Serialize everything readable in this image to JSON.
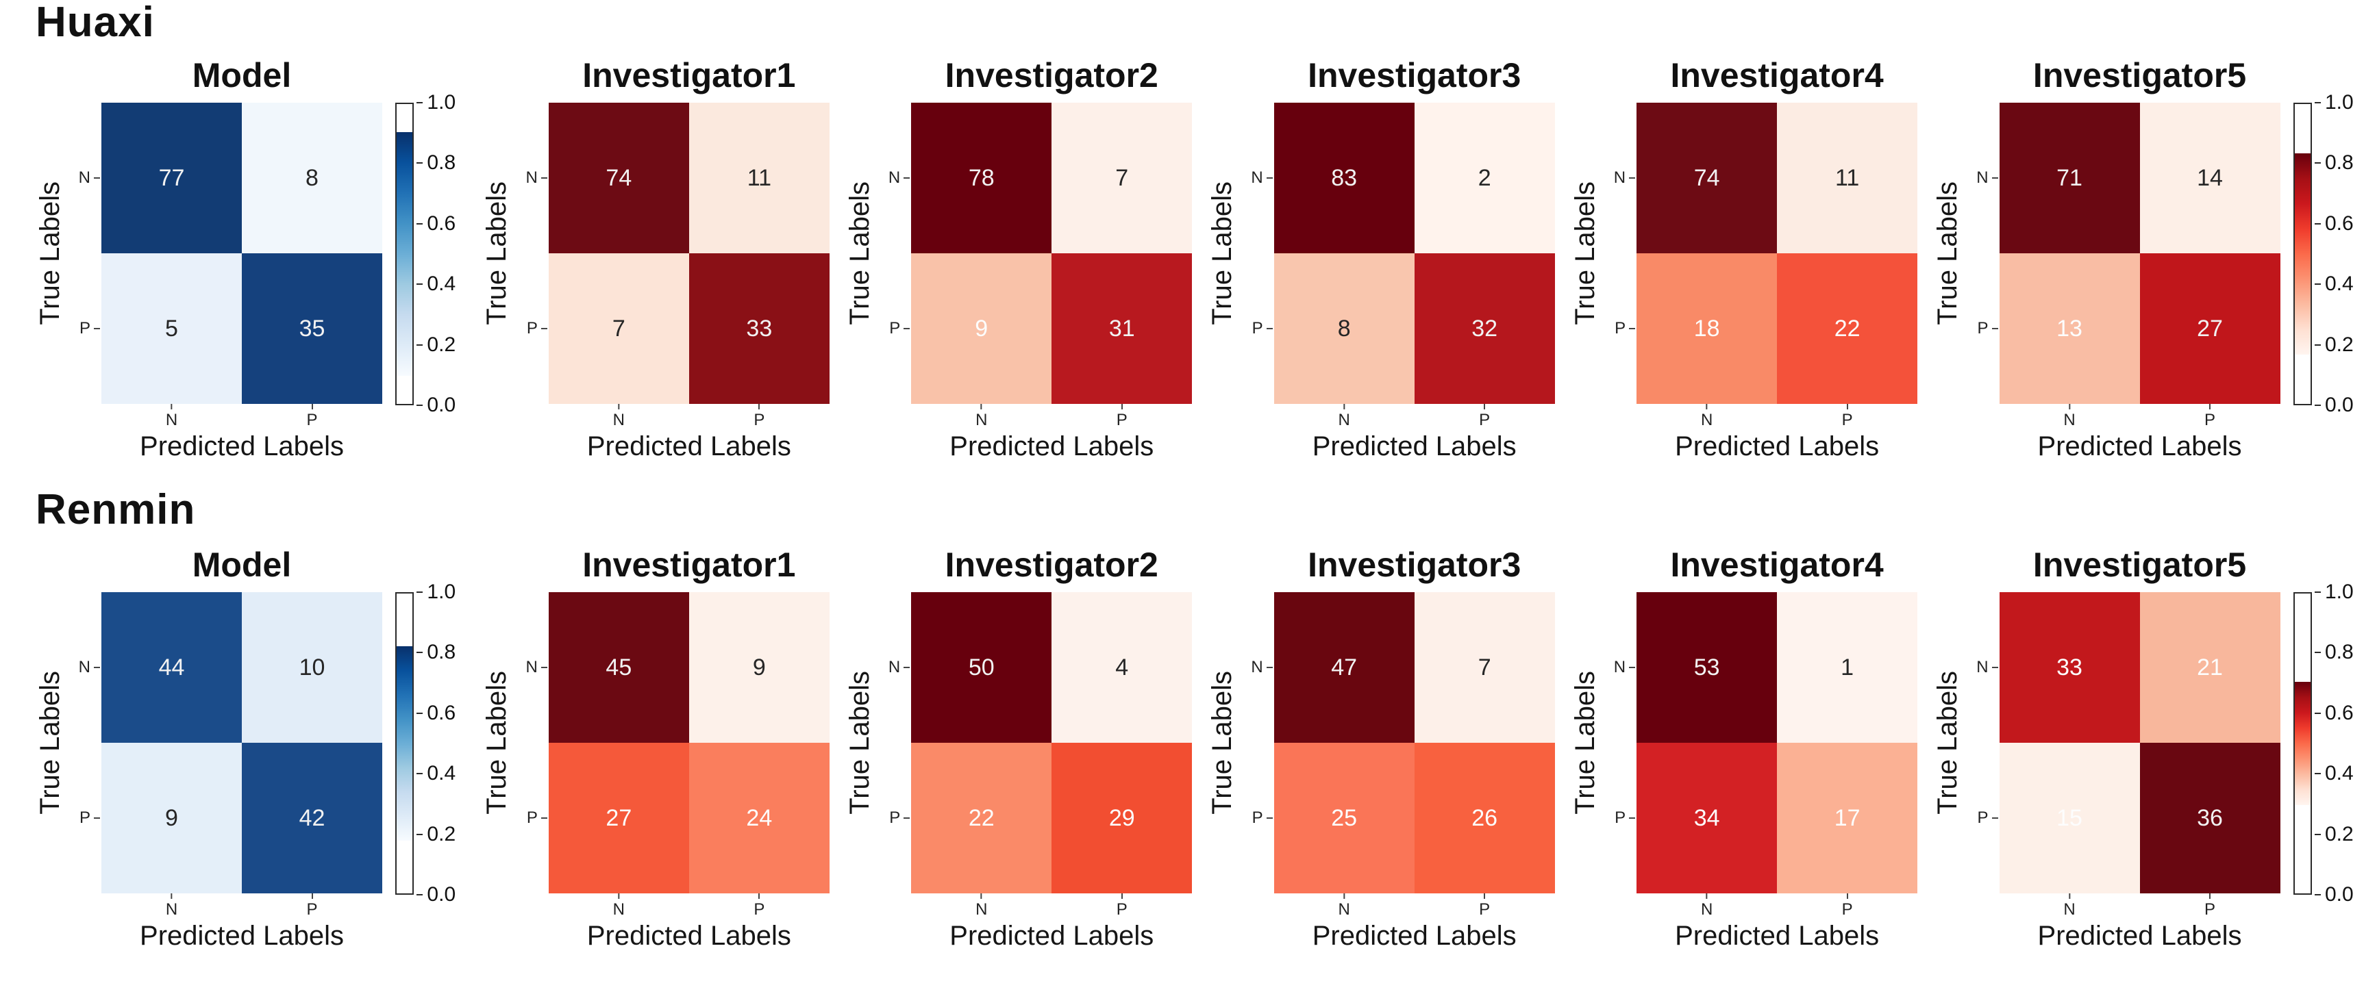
{
  "axes": {
    "xlabel": "Predicted Labels",
    "ylabel": "True Labels",
    "x_ticks": [
      "N",
      "P"
    ],
    "y_ticks": [
      "N",
      "P"
    ]
  },
  "rows": [
    {
      "heading": "Huaxi",
      "panels": [
        {
          "title": "Model",
          "cells": [
            {
              "v": "77",
              "bg": "#123c74",
              "fg": "#f2f2f2"
            },
            {
              "v": "8",
              "bg": "#f1f7fc",
              "fg": "#262626"
            },
            {
              "v": "5",
              "bg": "#e9f1fa",
              "fg": "#262626"
            },
            {
              "v": "35",
              "bg": "#15417d",
              "fg": "#f2f2f2"
            }
          ]
        },
        {
          "title": "Investigator1",
          "cells": [
            {
              "v": "74",
              "bg": "#6d0b14",
              "fg": "#f2f2f2"
            },
            {
              "v": "11",
              "bg": "#fbe9de",
              "fg": "#262626"
            },
            {
              "v": "7",
              "bg": "#fce4d7",
              "fg": "#262626"
            },
            {
              "v": "33",
              "bg": "#8a1016",
              "fg": "#f2f2f2"
            }
          ]
        },
        {
          "title": "Investigator2",
          "cells": [
            {
              "v": "78",
              "bg": "#67000d",
              "fg": "#f2f2f2"
            },
            {
              "v": "7",
              "bg": "#fdf0e9",
              "fg": "#262626"
            },
            {
              "v": "9",
              "bg": "#f9c2a9",
              "fg": "#fdfdfd"
            },
            {
              "v": "31",
              "bg": "#b8191f",
              "fg": "#f2f2f2"
            }
          ]
        },
        {
          "title": "Investigator3",
          "cells": [
            {
              "v": "83",
              "bg": "#67000d",
              "fg": "#f2f2f2"
            },
            {
              "v": "2",
              "bg": "#fff3ed",
              "fg": "#262626"
            },
            {
              "v": "8",
              "bg": "#f9c6ae",
              "fg": "#262626"
            },
            {
              "v": "32",
              "bg": "#b5171d",
              "fg": "#f2f2f2"
            }
          ]
        },
        {
          "title": "Investigator4",
          "cells": [
            {
              "v": "74",
              "bg": "#6d0b14",
              "fg": "#f2f2f2"
            },
            {
              "v": "11",
              "bg": "#fcece3",
              "fg": "#262626"
            },
            {
              "v": "18",
              "bg": "#f98a67",
              "fg": "#fdfdfd"
            },
            {
              "v": "22",
              "bg": "#f4523a",
              "fg": "#fdfdfd"
            }
          ]
        },
        {
          "title": "Investigator5",
          "cells": [
            {
              "v": "71",
              "bg": "#6a0812",
              "fg": "#f2f2f2"
            },
            {
              "v": "14",
              "bg": "#fdefe7",
              "fg": "#262626"
            },
            {
              "v": "13",
              "bg": "#f9bda4",
              "fg": "#fdfdfd"
            },
            {
              "v": "27",
              "bg": "#c0161b",
              "fg": "#f2f2f2"
            }
          ]
        }
      ],
      "cb_blue": {
        "ticks": [
          "1.0",
          "0.8",
          "0.6",
          "0.4",
          "0.2",
          "0.0"
        ],
        "gradient": "linear-gradient(to bottom,#08306b 0%,#08519c 12.5%,#2171b5 25%,#4292c6 37.5%,#6baed6 50%,#9ecae1 62.5%,#c6dbef 75%,#deebf7 87.5%,#f7fbff 100%)",
        "top": "9.4%",
        "bottom": "9.4%"
      },
      "cb_red": {
        "ticks": [
          "1.0",
          "0.8",
          "0.6",
          "0.4",
          "0.2",
          "0.0"
        ],
        "gradient": "linear-gradient(to bottom,#67000d 0%,#a50f15 12.5%,#cb181d 25%,#ef3b2c 37.5%,#fb6a4a 50%,#fc9272 62.5%,#fcbba1 75%,#fee0d2 87.5%,#fff5f0 100%)",
        "top": "16.5%",
        "bottom": "16.5%"
      }
    },
    {
      "heading": "Renmin",
      "panels": [
        {
          "title": "Model",
          "cells": [
            {
              "v": "44",
              "bg": "#1b4c8a",
              "fg": "#f2f2f2"
            },
            {
              "v": "10",
              "bg": "#e2edf8",
              "fg": "#262626"
            },
            {
              "v": "9",
              "bg": "#e4eff9",
              "fg": "#262626"
            },
            {
              "v": "42",
              "bg": "#1a4a88",
              "fg": "#f2f2f2"
            }
          ]
        },
        {
          "title": "Investigator1",
          "cells": [
            {
              "v": "45",
              "bg": "#6b0912",
              "fg": "#f2f2f2"
            },
            {
              "v": "9",
              "bg": "#fdf1ea",
              "fg": "#262626"
            },
            {
              "v": "27",
              "bg": "#f5593a",
              "fg": "#fdfdfd"
            },
            {
              "v": "24",
              "bg": "#fa7e5d",
              "fg": "#fdfdfd"
            }
          ]
        },
        {
          "title": "Investigator2",
          "cells": [
            {
              "v": "50",
              "bg": "#67000d",
              "fg": "#f2f2f2"
            },
            {
              "v": "4",
              "bg": "#fdf2ec",
              "fg": "#262626"
            },
            {
              "v": "22",
              "bg": "#fa8a68",
              "fg": "#fdfdfd"
            },
            {
              "v": "29",
              "bg": "#f24e31",
              "fg": "#fdfdfd"
            }
          ]
        },
        {
          "title": "Investigator3",
          "cells": [
            {
              "v": "47",
              "bg": "#69060f",
              "fg": "#f2f2f2"
            },
            {
              "v": "7",
              "bg": "#fdf0e9",
              "fg": "#262626"
            },
            {
              "v": "25",
              "bg": "#fa7557",
              "fg": "#fdfdfd"
            },
            {
              "v": "26",
              "bg": "#f8613f",
              "fg": "#fdfdfd"
            }
          ]
        },
        {
          "title": "Investigator4",
          "cells": [
            {
              "v": "53",
              "bg": "#67000d",
              "fg": "#f2f2f2"
            },
            {
              "v": "1",
              "bg": "#fef3ee",
              "fg": "#262626"
            },
            {
              "v": "34",
              "bg": "#d32124",
              "fg": "#fdfdfd"
            },
            {
              "v": "17",
              "bg": "#fbb194",
              "fg": "#fdfdfd"
            }
          ]
        },
        {
          "title": "Investigator5",
          "cells": [
            {
              "v": "33",
              "bg": "#c2181c",
              "fg": "#fdfdfd"
            },
            {
              "v": "21",
              "bg": "#f8b79c",
              "fg": "#fdfdfd"
            },
            {
              "v": "15",
              "bg": "#fdf0e8",
              "fg": "#fdfdfd"
            },
            {
              "v": "36",
              "bg": "#690711",
              "fg": "#f2f2f2"
            }
          ]
        }
      ],
      "cb_blue": {
        "ticks": [
          "1.0",
          "0.8",
          "0.6",
          "0.4",
          "0.2",
          "0.0"
        ],
        "gradient": "linear-gradient(to bottom,#08306b 0%,#08519c 12.5%,#2171b5 25%,#4292c6 37.5%,#6baed6 50%,#9ecae1 62.5%,#c6dbef 75%,#deebf7 87.5%,#f7fbff 100%)",
        "top": "17.6%",
        "bottom": "17.6%"
      },
      "cb_red": {
        "ticks": [
          "1.0",
          "0.8",
          "0.6",
          "0.4",
          "0.2",
          "0.0"
        ],
        "gradient": "linear-gradient(to bottom,#67000d 0%,#a50f15 12.5%,#cb181d 25%,#ef3b2c 37.5%,#fb6a4a 50%,#fc9272 62.5%,#fcbba1 75%,#fee0d2 87.5%,#fff5f0 100%)",
        "top": "29.4%",
        "bottom": "29.4%"
      }
    }
  ],
  "chart_data": [
    {
      "type": "heatmap",
      "group": "Huaxi",
      "title": "Model",
      "colormap": "Blues",
      "row_labels": [
        "N",
        "P"
      ],
      "col_labels": [
        "N",
        "P"
      ],
      "xlabel": "Predicted Labels",
      "ylabel": "True Labels",
      "matrix": [
        [
          77,
          8
        ],
        [
          5,
          35
        ]
      ],
      "colorbar_axis": [
        0.0,
        1.0
      ]
    },
    {
      "type": "heatmap",
      "group": "Huaxi",
      "title": "Investigator1",
      "colormap": "Reds",
      "row_labels": [
        "N",
        "P"
      ],
      "col_labels": [
        "N",
        "P"
      ],
      "xlabel": "Predicted Labels",
      "ylabel": "True Labels",
      "matrix": [
        [
          74,
          11
        ],
        [
          7,
          33
        ]
      ]
    },
    {
      "type": "heatmap",
      "group": "Huaxi",
      "title": "Investigator2",
      "colormap": "Reds",
      "row_labels": [
        "N",
        "P"
      ],
      "col_labels": [
        "N",
        "P"
      ],
      "xlabel": "Predicted Labels",
      "ylabel": "True Labels",
      "matrix": [
        [
          78,
          7
        ],
        [
          9,
          31
        ]
      ]
    },
    {
      "type": "heatmap",
      "group": "Huaxi",
      "title": "Investigator3",
      "colormap": "Reds",
      "row_labels": [
        "N",
        "P"
      ],
      "col_labels": [
        "N",
        "P"
      ],
      "xlabel": "Predicted Labels",
      "ylabel": "True Labels",
      "matrix": [
        [
          83,
          2
        ],
        [
          8,
          32
        ]
      ]
    },
    {
      "type": "heatmap",
      "group": "Huaxi",
      "title": "Investigator4",
      "colormap": "Reds",
      "row_labels": [
        "N",
        "P"
      ],
      "col_labels": [
        "N",
        "P"
      ],
      "xlabel": "Predicted Labels",
      "ylabel": "True Labels",
      "matrix": [
        [
          74,
          11
        ],
        [
          18,
          22
        ]
      ]
    },
    {
      "type": "heatmap",
      "group": "Huaxi",
      "title": "Investigator5",
      "colormap": "Reds",
      "row_labels": [
        "N",
        "P"
      ],
      "col_labels": [
        "N",
        "P"
      ],
      "xlabel": "Predicted Labels",
      "ylabel": "True Labels",
      "matrix": [
        [
          71,
          14
        ],
        [
          13,
          27
        ]
      ],
      "colorbar_axis": [
        0.0,
        1.0
      ]
    },
    {
      "type": "heatmap",
      "group": "Renmin",
      "title": "Model",
      "colormap": "Blues",
      "row_labels": [
        "N",
        "P"
      ],
      "col_labels": [
        "N",
        "P"
      ],
      "xlabel": "Predicted Labels",
      "ylabel": "True Labels",
      "matrix": [
        [
          44,
          10
        ],
        [
          9,
          42
        ]
      ],
      "colorbar_axis": [
        0.0,
        1.0
      ]
    },
    {
      "type": "heatmap",
      "group": "Renmin",
      "title": "Investigator1",
      "colormap": "Reds",
      "row_labels": [
        "N",
        "P"
      ],
      "col_labels": [
        "N",
        "P"
      ],
      "xlabel": "Predicted Labels",
      "ylabel": "True Labels",
      "matrix": [
        [
          45,
          9
        ],
        [
          27,
          24
        ]
      ]
    },
    {
      "type": "heatmap",
      "group": "Renmin",
      "title": "Investigator2",
      "colormap": "Reds",
      "row_labels": [
        "N",
        "P"
      ],
      "col_labels": [
        "N",
        "P"
      ],
      "xlabel": "Predicted Labels",
      "ylabel": "True Labels",
      "matrix": [
        [
          50,
          4
        ],
        [
          22,
          29
        ]
      ]
    },
    {
      "type": "heatmap",
      "group": "Renmin",
      "title": "Investigator3",
      "colormap": "Reds",
      "row_labels": [
        "N",
        "P"
      ],
      "col_labels": [
        "N",
        "P"
      ],
      "xlabel": "Predicted Labels",
      "ylabel": "True Labels",
      "matrix": [
        [
          47,
          7
        ],
        [
          25,
          26
        ]
      ]
    },
    {
      "type": "heatmap",
      "group": "Renmin",
      "title": "Investigator4",
      "colormap": "Reds",
      "row_labels": [
        "N",
        "P"
      ],
      "col_labels": [
        "N",
        "P"
      ],
      "xlabel": "Predicted Labels",
      "ylabel": "True Labels",
      "matrix": [
        [
          53,
          1
        ],
        [
          34,
          17
        ]
      ]
    },
    {
      "type": "heatmap",
      "group": "Renmin",
      "title": "Investigator5",
      "colormap": "Reds",
      "row_labels": [
        "N",
        "P"
      ],
      "col_labels": [
        "N",
        "P"
      ],
      "xlabel": "Predicted Labels",
      "ylabel": "True Labels",
      "matrix": [
        [
          33,
          21
        ],
        [
          15,
          36
        ]
      ],
      "colorbar_axis": [
        0.0,
        1.0
      ]
    }
  ]
}
